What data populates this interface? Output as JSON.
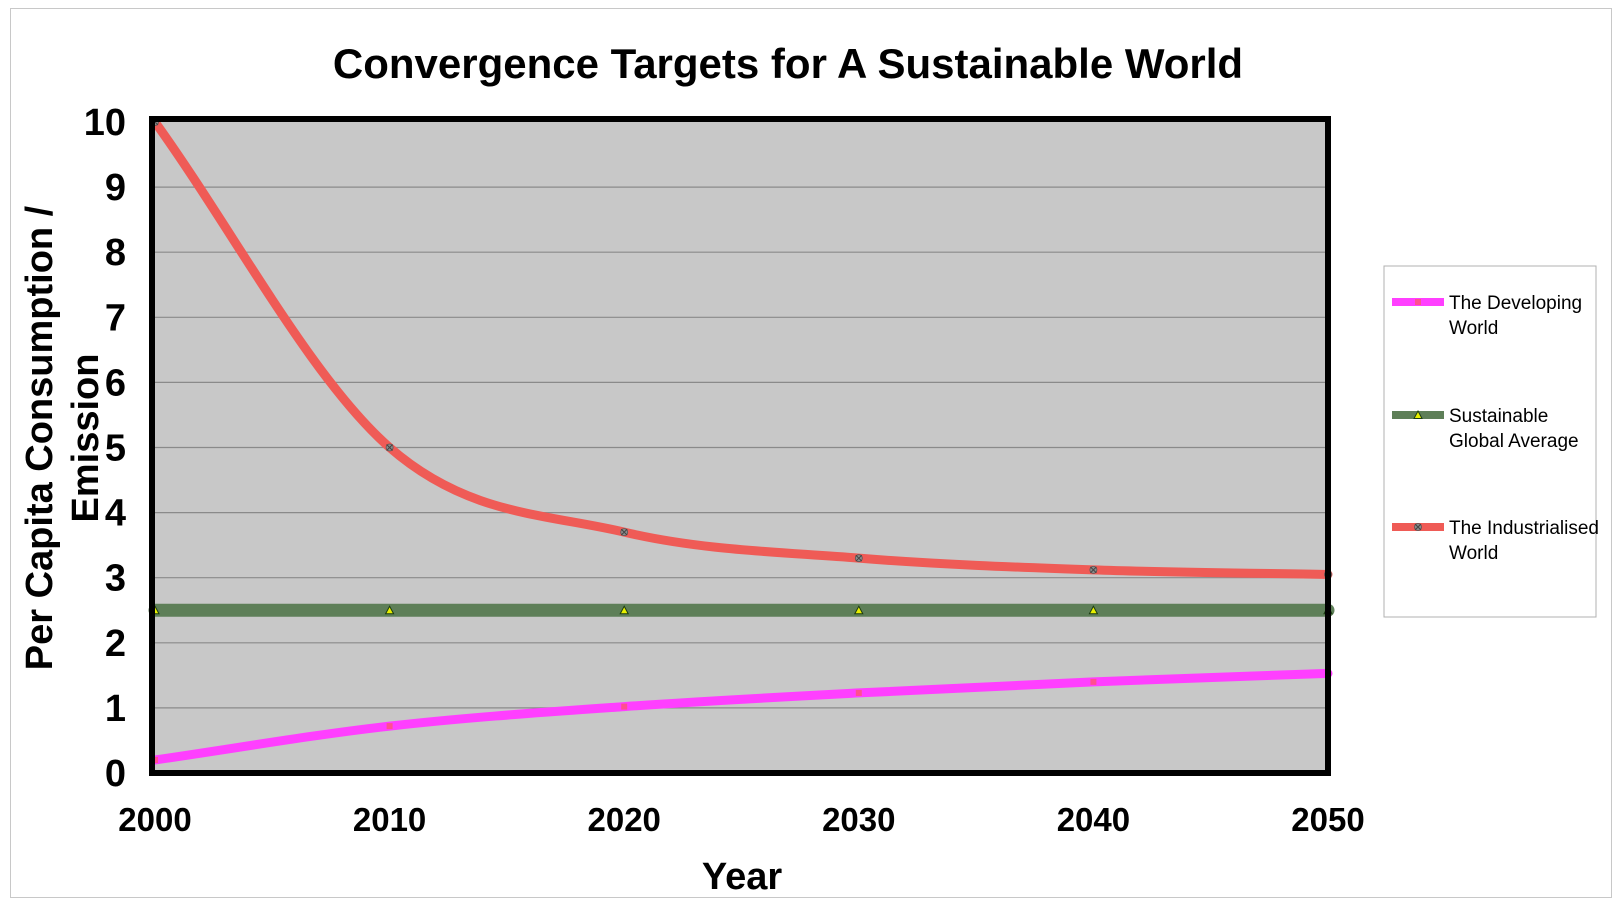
{
  "chart_data": {
    "type": "line",
    "title": "Convergence Targets for A Sustainable  World",
    "xlabel": "Year",
    "ylabel_line1": "Per Capita Consumption /",
    "ylabel_line2": "Emission",
    "x": [
      2000,
      2010,
      2020,
      2030,
      2040,
      2050
    ],
    "xlim": [
      2000,
      2050
    ],
    "ylim": [
      0,
      10
    ],
    "yticks": [
      0,
      1,
      2,
      3,
      4,
      5,
      6,
      7,
      8,
      9,
      10
    ],
    "grid": true,
    "legend_position": "right",
    "plot_background": "#c8c8c8",
    "series": [
      {
        "name_line1": "The Developing",
        "name_line2": "World",
        "values": [
          0.2,
          0.72,
          1.02,
          1.23,
          1.4,
          1.53
        ],
        "color": "#ff3fff",
        "marker_color": "#ff4f8f",
        "marker": "square"
      },
      {
        "name_line1": "Sustainable",
        "name_line2": "Global Average",
        "values": [
          2.5,
          2.5,
          2.5,
          2.5,
          2.5,
          2.5
        ],
        "color": "#5e7f58",
        "marker_color": "#e8f000",
        "marker": "triangle"
      },
      {
        "name_line1": "The Industrialised",
        "name_line2": "World",
        "values": [
          10,
          5,
          3.7,
          3.3,
          3.12,
          3.05
        ],
        "color": "#ef5b56",
        "marker_color": "#8c8c8c",
        "marker": "x"
      }
    ]
  }
}
